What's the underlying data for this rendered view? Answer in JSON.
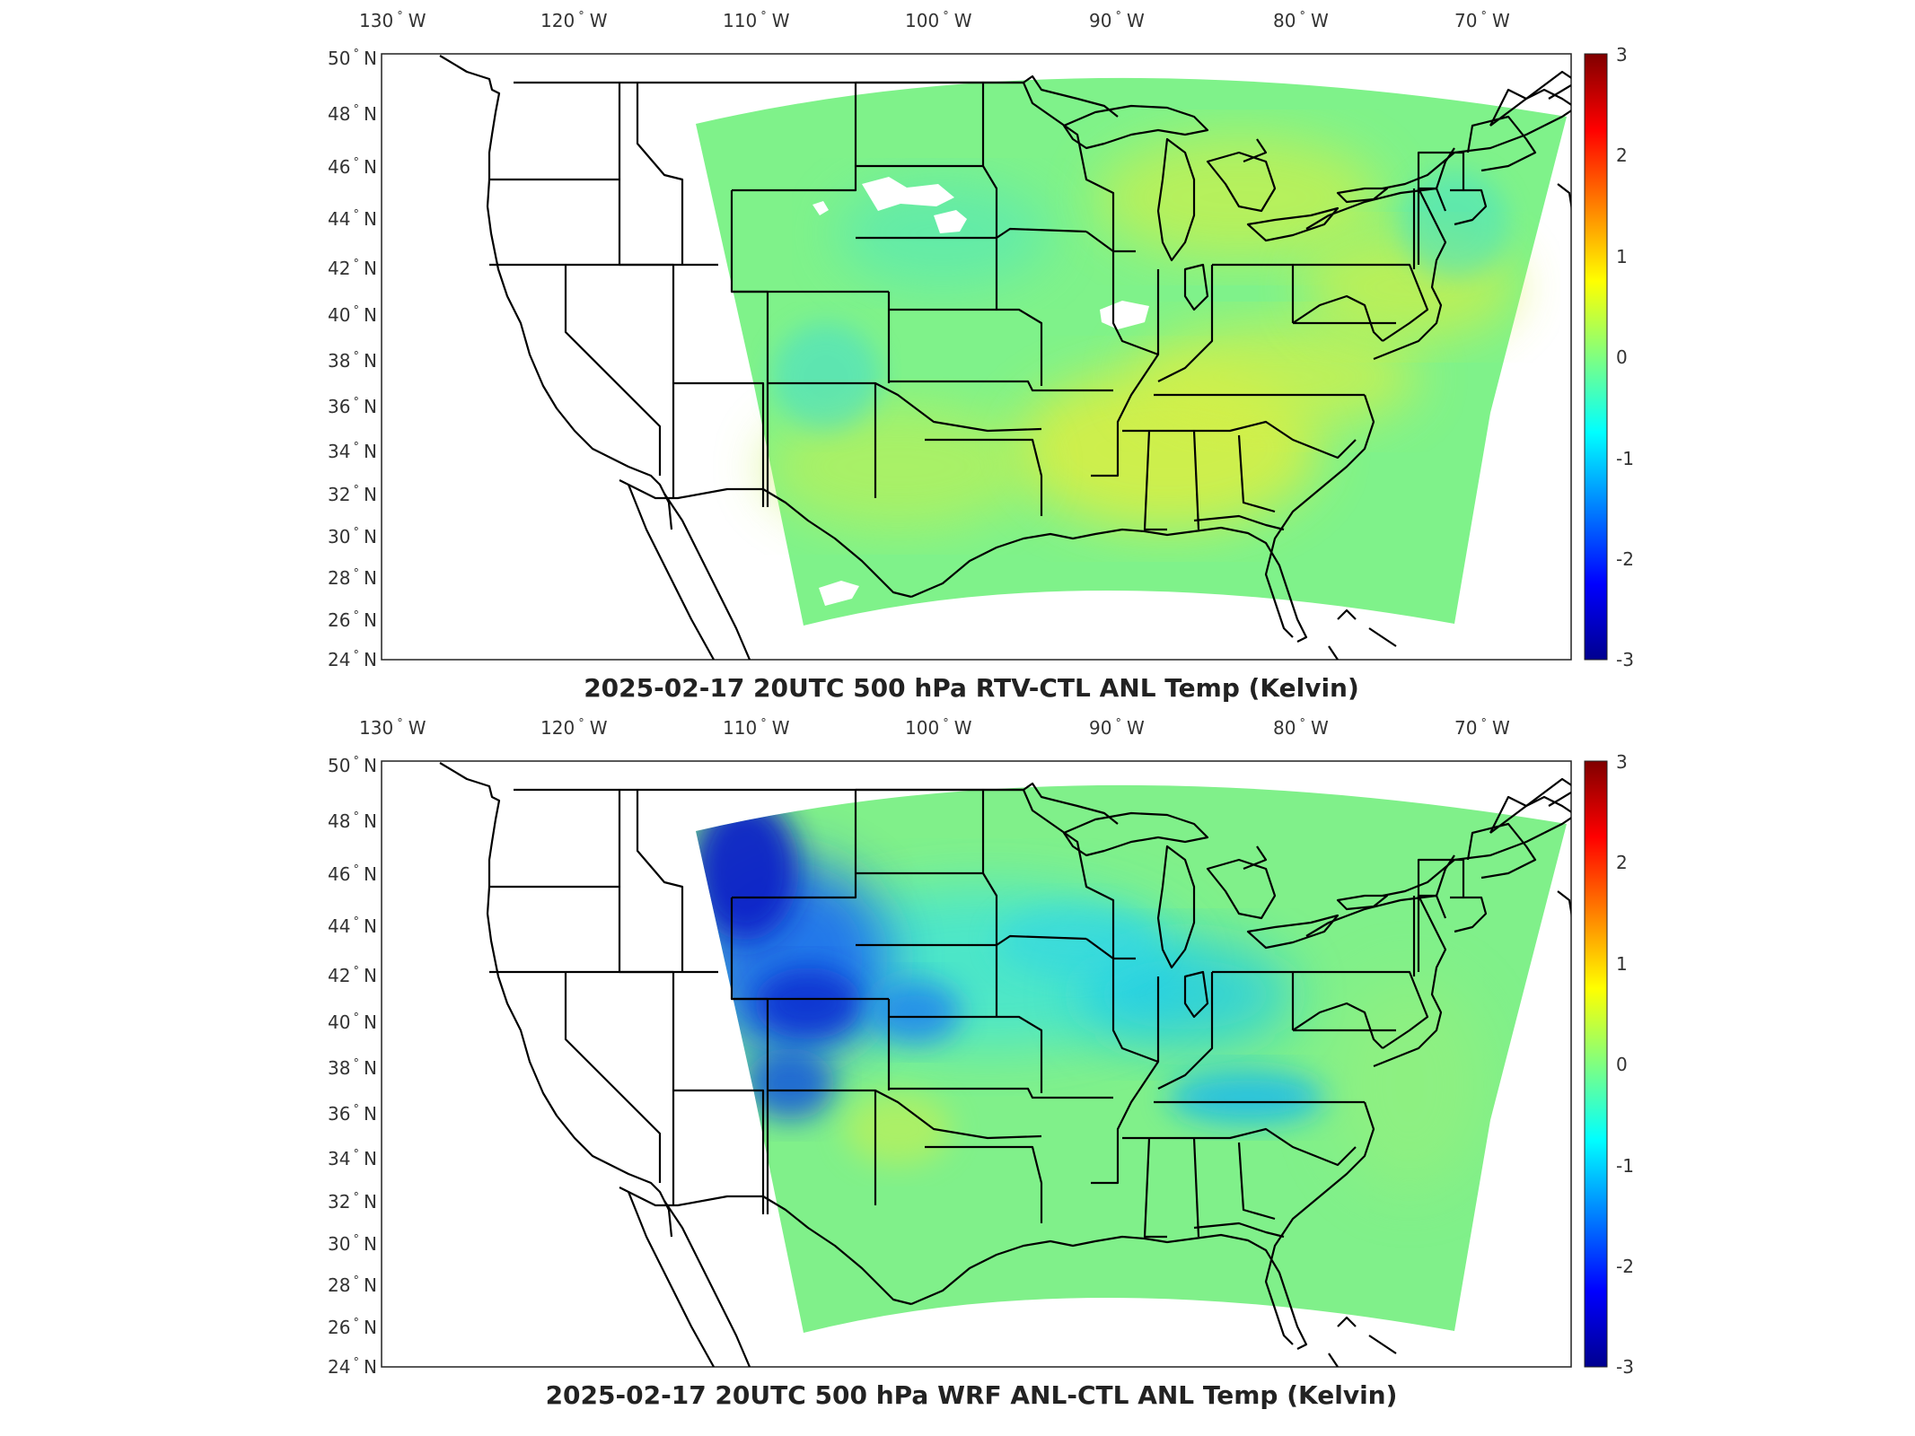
{
  "figure": {
    "panels": [
      {
        "title": "2025-02-17 20UTC 500 hPa RTV-CTL ANL Temp (Kelvin)",
        "lon_ticks": [
          "130",
          "120",
          "110",
          "100",
          "90",
          "80",
          "70"
        ],
        "lon_suffix": "W",
        "lat_ticks": [
          "50",
          "48",
          "46",
          "44",
          "42",
          "40",
          "38",
          "36",
          "34",
          "32",
          "30",
          "28",
          "26",
          "24"
        ],
        "lat_suffix": "N",
        "colorbar": {
          "ticks": [
            "3",
            "2",
            "1",
            "0",
            "-1",
            "-2",
            "-3"
          ],
          "range": [
            -3,
            3
          ],
          "colormap": "jet"
        },
        "field": {
          "background_value": 0.1,
          "colors": {
            "background": "#7ff28a",
            "warm": "#c8f04a",
            "warmer": "#e6ee35",
            "cool": "#4ee6c0",
            "cooler": "#2fd8e8",
            "missing": "#ffffff"
          },
          "features": [
            {
              "region": "southeast US / Tennessee Valley",
              "value": 0.6
            },
            {
              "region": "Great Lakes / Ohio Valley",
              "value": 0.5
            },
            {
              "region": "northern plains",
              "value": -0.3
            },
            {
              "region": "missing data patches (Dakotas, Iowa, Texas border)",
              "value": null
            }
          ]
        }
      },
      {
        "title": "2025-02-17 20UTC 500 hPa WRF ANL-CTL ANL Temp (Kelvin)",
        "lon_ticks": [
          "130",
          "120",
          "110",
          "100",
          "90",
          "80",
          "70"
        ],
        "lon_suffix": "W",
        "lat_ticks": [
          "50",
          "48",
          "46",
          "44",
          "42",
          "40",
          "38",
          "36",
          "34",
          "32",
          "30",
          "28",
          "26",
          "24"
        ],
        "lat_suffix": "N",
        "colorbar": {
          "ticks": [
            "3",
            "2",
            "1",
            "0",
            "-1",
            "-2",
            "-3"
          ],
          "range": [
            -3,
            3
          ],
          "colormap": "jet"
        },
        "field": {
          "background_value": 0.0,
          "colors": {
            "background": "#80f08a",
            "cool": "#3fe4d8",
            "cold": "#12c8f0",
            "colder": "#1a6cf0",
            "coldest": "#0a24c8"
          },
          "features": [
            {
              "region": "Idaho / Wyoming / Colorado",
              "value": -2.6
            },
            {
              "region": "Kansas / Nebraska",
              "value": -1.2
            },
            {
              "region": "Ohio Valley / Kentucky",
              "value": -1.0
            },
            {
              "region": "southern Appalachians",
              "value": -1.4
            }
          ]
        }
      }
    ]
  }
}
